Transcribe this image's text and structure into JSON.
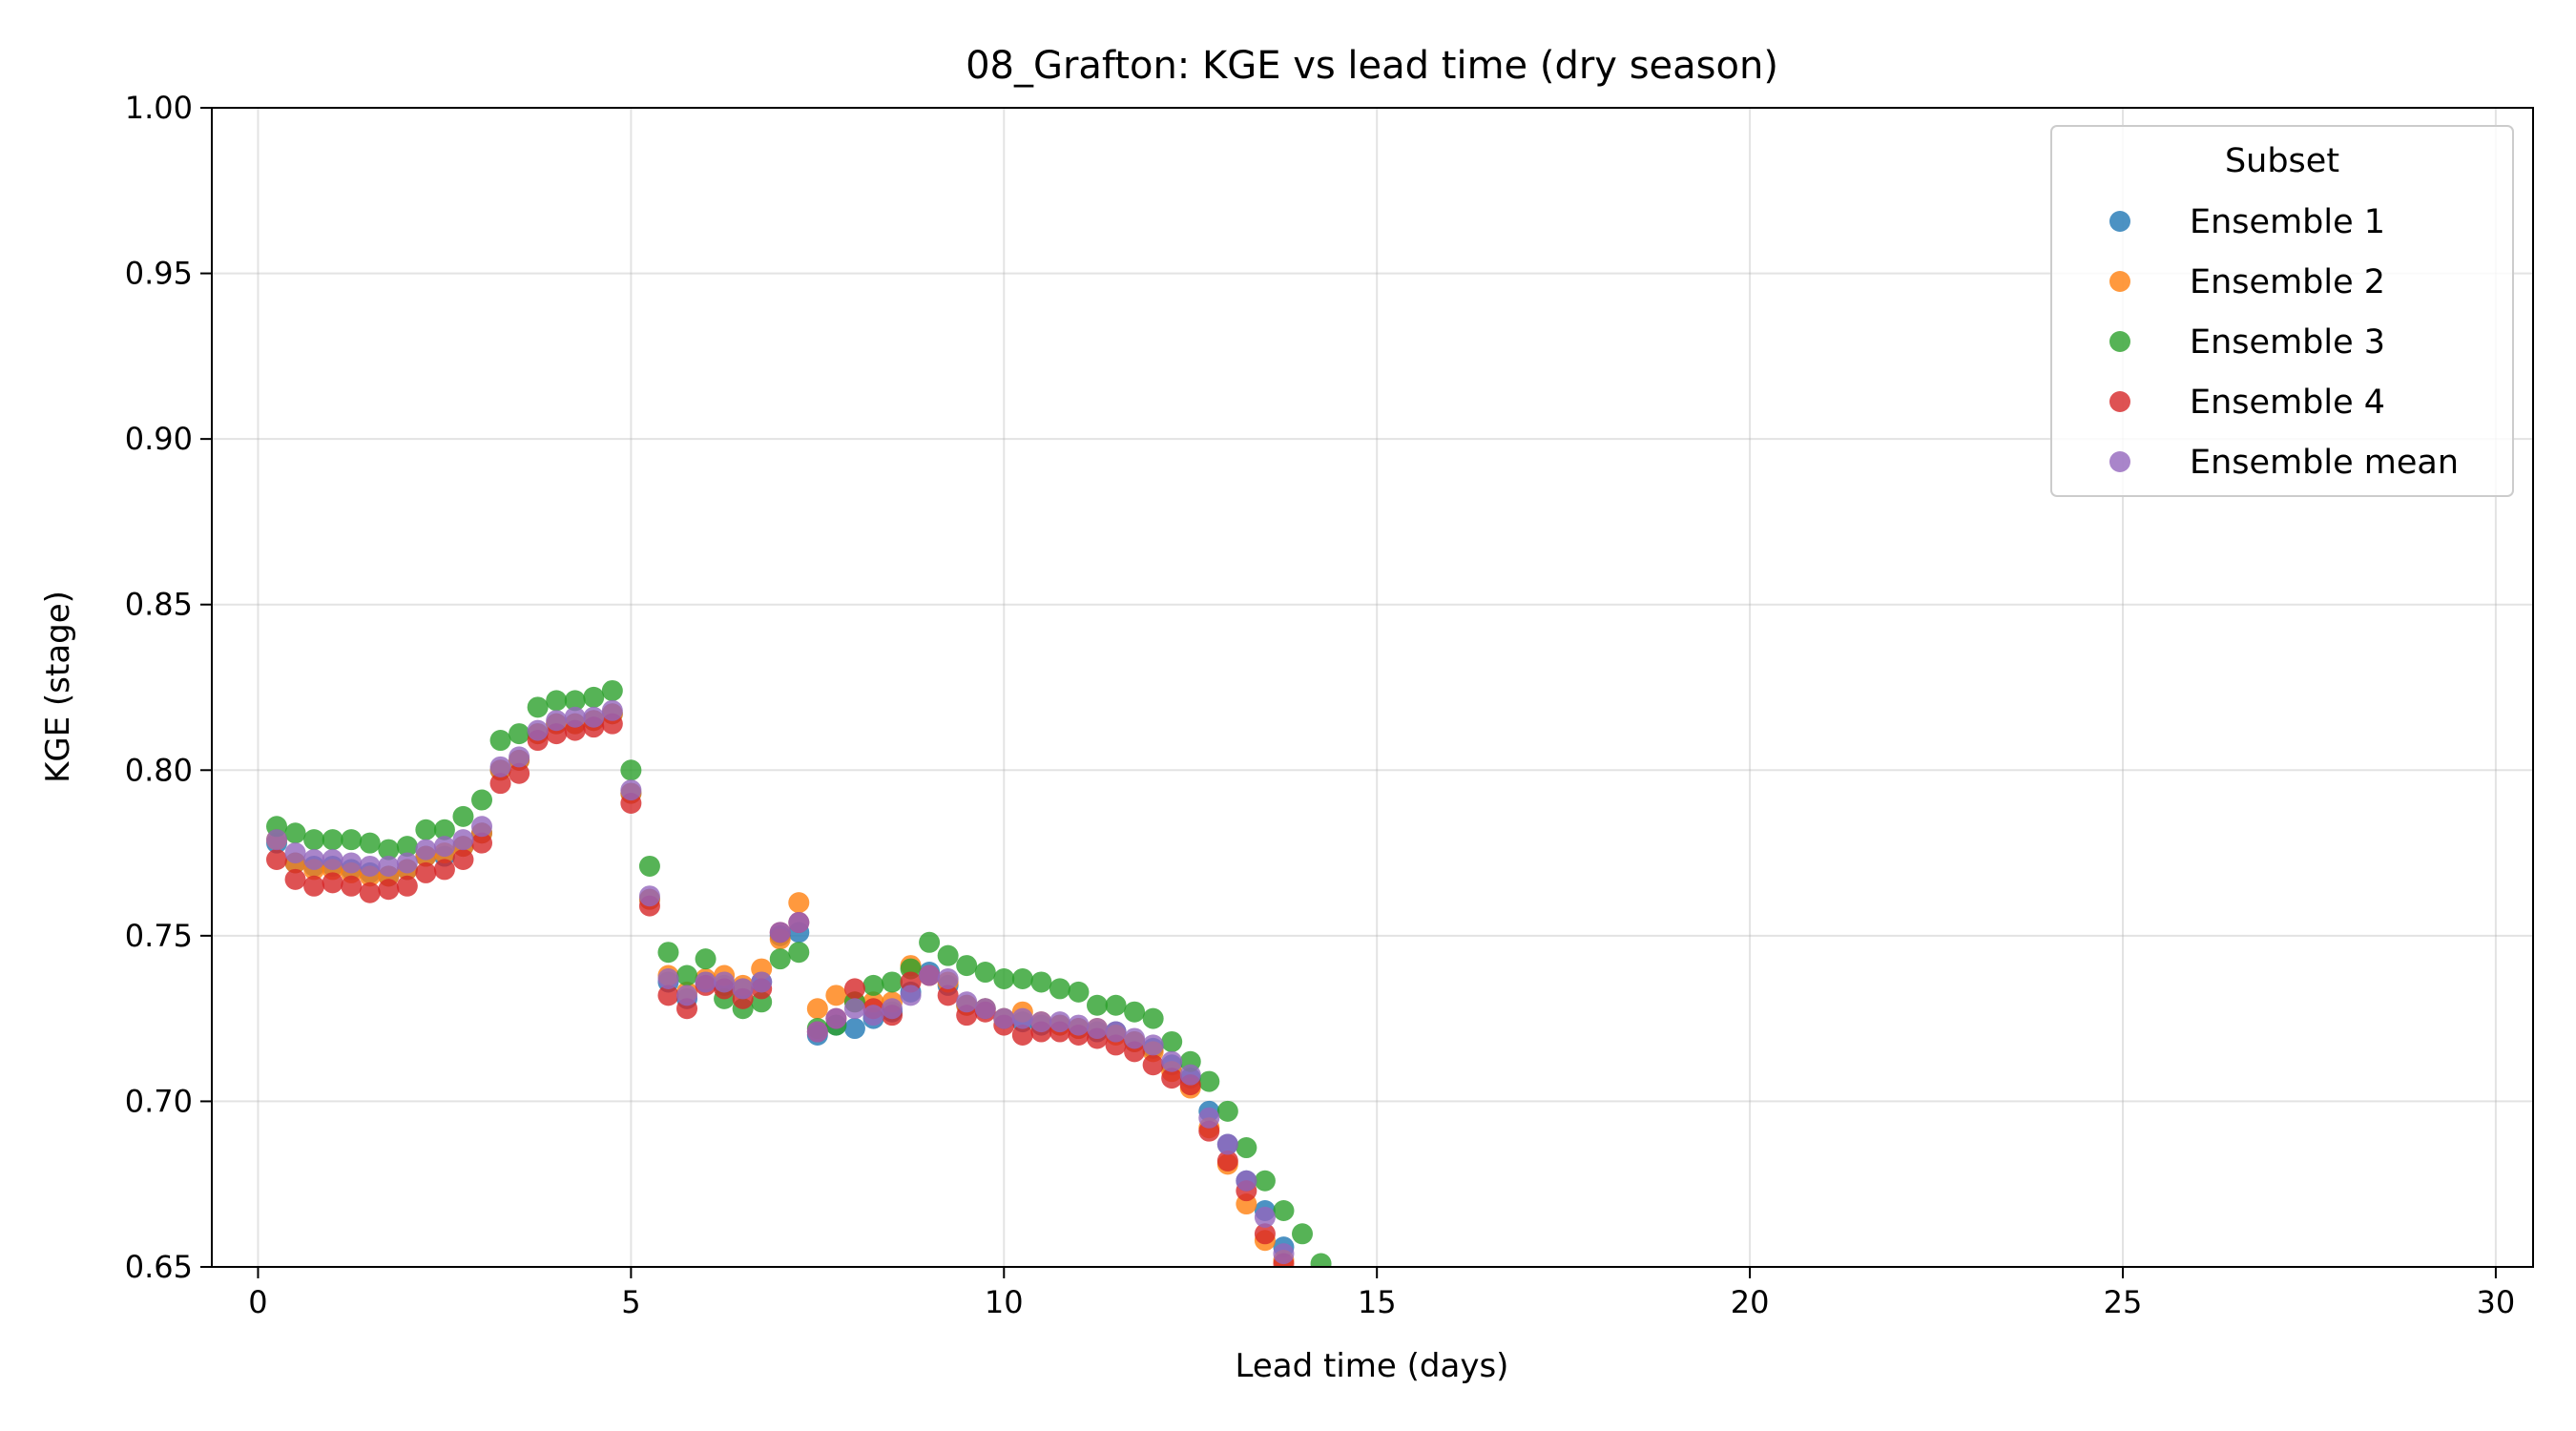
{
  "chart_data": {
    "type": "scatter",
    "title": "08_Grafton: KGE vs lead time (dry season)",
    "xlabel": "Lead time (days)",
    "ylabel": "KGE (stage)",
    "xlim": [
      -0.62,
      30.5
    ],
    "ylim": [
      0.65,
      1.0
    ],
    "xticks": [
      0,
      5,
      10,
      15,
      20,
      25,
      30
    ],
    "yticks": [
      0.65,
      0.7,
      0.75,
      0.8,
      0.85,
      0.9,
      0.95,
      1.0
    ],
    "xtick_labels": [
      "0",
      "5",
      "10",
      "15",
      "20",
      "25",
      "30"
    ],
    "ytick_labels": [
      "0.65",
      "0.70",
      "0.75",
      "0.80",
      "0.85",
      "0.90",
      "0.95",
      "1.00"
    ],
    "grid": true,
    "legend": {
      "title": "Subset",
      "position": "top-right"
    },
    "x": [
      0.25,
      0.5,
      0.75,
      1.0,
      1.25,
      1.5,
      1.75,
      2.0,
      2.25,
      2.5,
      2.75,
      3.0,
      3.25,
      3.5,
      3.75,
      4.0,
      4.25,
      4.5,
      4.75,
      5.0,
      5.25,
      5.5,
      5.75,
      6.0,
      6.25,
      6.5,
      6.75,
      7.0,
      7.25,
      7.5,
      7.75,
      8.0,
      8.25,
      8.5,
      8.75,
      9.0,
      9.25,
      9.5,
      9.75,
      10.0,
      10.25,
      10.5,
      10.75,
      11.0,
      11.25,
      11.5,
      11.75,
      12.0,
      12.25,
      12.5,
      12.75,
      13.0,
      13.25,
      13.5,
      13.75,
      14.0,
      14.25
    ],
    "series": [
      {
        "name": "Ensemble 1",
        "color": "#1f77b4",
        "values": [
          0.778,
          0.772,
          0.771,
          0.771,
          0.77,
          0.769,
          0.768,
          0.77,
          0.774,
          0.774,
          0.777,
          0.781,
          0.8,
          0.803,
          0.811,
          0.814,
          0.814,
          0.815,
          0.817,
          0.793,
          0.761,
          0.736,
          0.731,
          0.736,
          0.735,
          0.734,
          0.736,
          0.75,
          0.751,
          0.72,
          0.723,
          0.722,
          0.725,
          0.727,
          0.733,
          0.739,
          0.735,
          0.729,
          0.728,
          0.725,
          0.724,
          0.723,
          0.723,
          0.722,
          0.721,
          0.721,
          0.718,
          0.716,
          0.711,
          0.707,
          0.697,
          0.687,
          0.676,
          0.667,
          0.656,
          null,
          null
        ]
      },
      {
        "name": "Ensemble 2",
        "color": "#ff7f0e",
        "values": [
          0.779,
          0.772,
          0.77,
          0.77,
          0.769,
          0.768,
          0.768,
          0.77,
          0.774,
          0.775,
          0.777,
          0.781,
          0.8,
          0.803,
          0.811,
          0.814,
          0.814,
          0.815,
          0.817,
          0.793,
          0.761,
          0.738,
          0.733,
          0.737,
          0.738,
          0.735,
          0.74,
          0.749,
          0.76,
          0.728,
          0.732,
          0.73,
          0.73,
          0.73,
          0.741,
          0.738,
          0.736,
          0.729,
          0.728,
          0.725,
          0.727,
          0.724,
          0.723,
          0.722,
          0.722,
          0.72,
          0.718,
          0.715,
          0.709,
          0.704,
          0.692,
          0.681,
          0.669,
          0.658,
          0.652,
          null,
          null
        ]
      },
      {
        "name": "Ensemble 3",
        "color": "#2ca02c",
        "values": [
          0.783,
          0.781,
          0.779,
          0.779,
          0.779,
          0.778,
          0.776,
          0.777,
          0.782,
          0.782,
          0.786,
          0.791,
          0.809,
          0.811,
          0.819,
          0.821,
          0.821,
          0.822,
          0.824,
          0.8,
          0.771,
          0.745,
          0.738,
          0.743,
          0.731,
          0.728,
          0.73,
          0.743,
          0.745,
          0.722,
          0.723,
          0.73,
          0.735,
          0.736,
          0.74,
          0.748,
          0.744,
          0.741,
          0.739,
          0.737,
          0.737,
          0.736,
          0.734,
          0.733,
          0.729,
          0.729,
          0.727,
          0.725,
          0.718,
          0.712,
          0.706,
          0.697,
          0.686,
          0.676,
          0.667,
          0.66,
          0.651
        ]
      },
      {
        "name": "Ensemble 4",
        "color": "#d62728",
        "values": [
          0.773,
          0.767,
          0.765,
          0.766,
          0.765,
          0.763,
          0.764,
          0.765,
          0.769,
          0.77,
          0.773,
          0.778,
          0.796,
          0.799,
          0.809,
          0.811,
          0.812,
          0.813,
          0.814,
          0.79,
          0.759,
          0.732,
          0.728,
          0.735,
          0.734,
          0.731,
          0.734,
          0.751,
          0.754,
          0.721,
          0.725,
          0.734,
          0.728,
          0.726,
          0.736,
          0.738,
          0.732,
          0.726,
          0.727,
          0.723,
          0.72,
          0.721,
          0.721,
          0.72,
          0.719,
          0.717,
          0.715,
          0.711,
          0.707,
          0.705,
          0.691,
          0.682,
          0.673,
          0.66,
          0.651,
          null,
          null
        ]
      },
      {
        "name": "Ensemble mean",
        "color": "#9467bd",
        "values": [
          0.779,
          0.775,
          0.773,
          0.773,
          0.772,
          0.771,
          0.771,
          0.772,
          0.776,
          0.777,
          0.779,
          0.783,
          0.801,
          0.804,
          0.812,
          0.815,
          0.816,
          0.816,
          0.818,
          0.794,
          0.762,
          0.737,
          0.732,
          0.736,
          0.736,
          0.734,
          0.736,
          0.751,
          0.754,
          0.721,
          0.725,
          0.728,
          0.726,
          0.728,
          0.732,
          0.738,
          0.737,
          0.73,
          0.728,
          0.725,
          0.725,
          0.724,
          0.724,
          0.723,
          0.722,
          0.721,
          0.719,
          0.717,
          0.712,
          0.708,
          0.695,
          0.687,
          0.676,
          0.665,
          0.654,
          null,
          null
        ]
      }
    ]
  }
}
